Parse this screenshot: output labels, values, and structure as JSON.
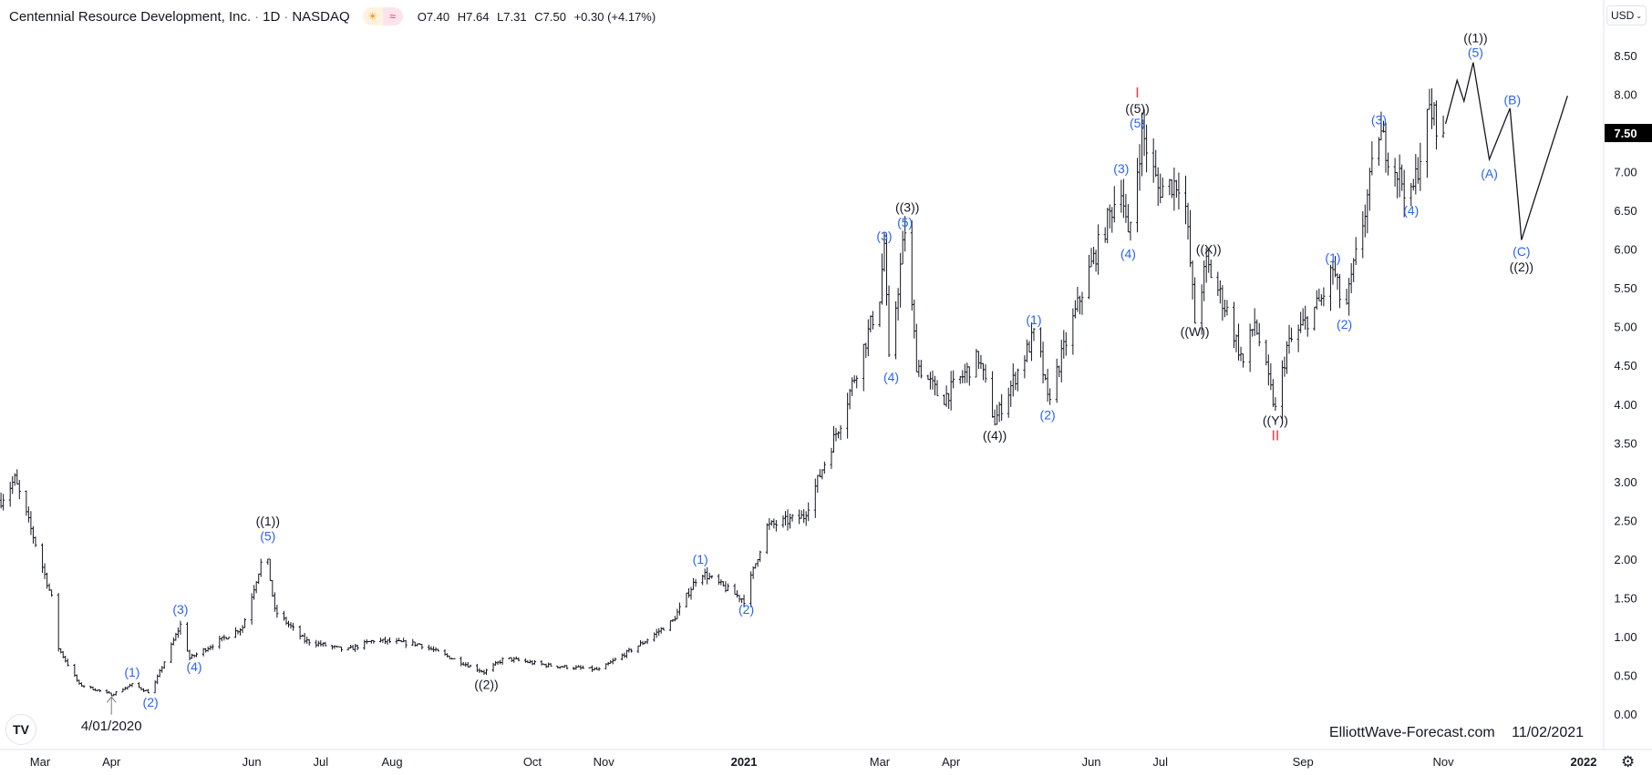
{
  "header": {
    "title": "Centennial Resource Development, Inc.",
    "interval": "1D",
    "exchange": "NASDAQ",
    "sep": "·",
    "sun_icon": "☀",
    "wave_icon": "≈",
    "open": "O7.40",
    "high": "H7.64",
    "low": "L7.31",
    "close": "C7.50",
    "change": "+0.30 (+4.17%)"
  },
  "currency_button": {
    "label": "USD",
    "chevron": "⌄"
  },
  "watermark": {
    "site": "ElliottWave-Forecast.com",
    "date": "11/02/2021"
  },
  "logo_text": "TV",
  "settings_icon": "⚙",
  "colors": {
    "bar": "#131722",
    "wave_minor": "#2962ff",
    "wave_major": "#131722",
    "wave_cycle": "#f23645",
    "axis_text": "#131722",
    "last_price_bg": "#000000"
  },
  "chart_data": {
    "type": "ohlc-bar",
    "title": "Centennial Resource Development, Inc. · 1D · NASDAQ",
    "ylim": [
      -0.25,
      9.1
    ],
    "xlim": [
      "2020-03-01",
      "2022-01-01"
    ],
    "y_ticks": [
      "0.00",
      "0.50",
      "1.00",
      "1.50",
      "2.00",
      "2.50",
      "3.00",
      "3.50",
      "4.00",
      "4.50",
      "5.00",
      "5.50",
      "6.00",
      "6.50",
      "7.00",
      "7.50",
      "8.00",
      "8.50"
    ],
    "last_price": {
      "value": 7.5,
      "label": "7.50"
    },
    "x_ticks": [
      {
        "label": "Mar",
        "date": "2020-03-01"
      },
      {
        "label": "Apr",
        "date": "2020-04-01"
      },
      {
        "label": "Jun",
        "date": "2020-06-01"
      },
      {
        "label": "Jul",
        "date": "2020-07-01"
      },
      {
        "label": "Aug",
        "date": "2020-08-01"
      },
      {
        "label": "Oct",
        "date": "2020-10-01"
      },
      {
        "label": "Nov",
        "date": "2020-11-01"
      },
      {
        "label": "2021",
        "date": "2021-01-01"
      },
      {
        "label": "Mar",
        "date": "2021-03-01"
      },
      {
        "label": "Apr",
        "date": "2021-04-01"
      },
      {
        "label": "Jun",
        "date": "2021-06-01"
      },
      {
        "label": "Jul",
        "date": "2021-07-01"
      },
      {
        "label": "Sep",
        "date": "2021-09-01"
      },
      {
        "label": "Nov",
        "date": "2021-11-01"
      },
      {
        "label": "2022",
        "date": "2022-01-01"
      }
    ],
    "price_path": [
      [
        "2020-02-13",
        2.76
      ],
      [
        "2020-02-19",
        3.03
      ],
      [
        "2020-02-28",
        2.2
      ],
      [
        "2020-03-06",
        1.5
      ],
      [
        "2020-03-09",
        0.85
      ],
      [
        "2020-03-18",
        0.38
      ],
      [
        "2020-04-01",
        0.25
      ],
      [
        "2020-04-10",
        0.38
      ],
      [
        "2020-04-18",
        0.27
      ],
      [
        "2020-05-01",
        1.15
      ],
      [
        "2020-05-05",
        0.72
      ],
      [
        "2020-05-28",
        1.12
      ],
      [
        "2020-06-07",
        2.15
      ],
      [
        "2020-06-11",
        1.33
      ],
      [
        "2020-06-24",
        0.95
      ],
      [
        "2020-07-12",
        0.82
      ],
      [
        "2020-07-24",
        0.95
      ],
      [
        "2020-08-13",
        0.9
      ],
      [
        "2020-09-10",
        0.54
      ],
      [
        "2020-09-19",
        0.72
      ],
      [
        "2020-10-07",
        0.63
      ],
      [
        "2020-10-30",
        0.57
      ],
      [
        "2020-11-18",
        0.92
      ],
      [
        "2020-12-01",
        1.2
      ],
      [
        "2020-12-13",
        1.84
      ],
      [
        "2020-12-20",
        1.7
      ],
      [
        "2021-01-01",
        1.47
      ],
      [
        "2021-01-11",
        2.42
      ],
      [
        "2021-01-27",
        2.55
      ],
      [
        "2021-02-12",
        3.78
      ],
      [
        "2021-03-01",
        5.4
      ],
      [
        "2021-03-03",
        6.07
      ],
      [
        "2021-03-05",
        4.53
      ],
      [
        "2021-03-12",
        6.26
      ],
      [
        "2021-03-17",
        4.53
      ],
      [
        "2021-03-28",
        4.05
      ],
      [
        "2021-04-13",
        4.6
      ],
      [
        "2021-04-20",
        3.78
      ],
      [
        "2021-05-08",
        4.95
      ],
      [
        "2021-05-13",
        4.05
      ],
      [
        "2021-05-29",
        5.55
      ],
      [
        "2021-06-14",
        6.85
      ],
      [
        "2021-06-17",
        6.1
      ],
      [
        "2021-06-23",
        7.52
      ],
      [
        "2021-06-30",
        6.78
      ],
      [
        "2021-07-11",
        6.9
      ],
      [
        "2021-07-14",
        5.82
      ],
      [
        "2021-07-16",
        5.07
      ],
      [
        "2021-07-21",
        5.82
      ],
      [
        "2021-07-30",
        5.2
      ],
      [
        "2021-08-06",
        4.53
      ],
      [
        "2021-08-11",
        5.07
      ],
      [
        "2021-08-20",
        3.92
      ],
      [
        "2021-08-25",
        4.73
      ],
      [
        "2021-09-09",
        5.35
      ],
      [
        "2021-09-14",
        5.75
      ],
      [
        "2021-09-19",
        5.14
      ],
      [
        "2021-09-28",
        6.5
      ],
      [
        "2021-10-04",
        7.52
      ],
      [
        "2021-10-09",
        7.18
      ],
      [
        "2021-10-18",
        6.64
      ],
      [
        "2021-10-26",
        7.8
      ],
      [
        "2021-11-01",
        7.5
      ]
    ],
    "projection": [
      [
        "2021-11-02",
        7.62
      ],
      [
        "2021-11-07",
        8.18
      ],
      [
        "2021-11-10",
        7.91
      ],
      [
        "2021-11-14",
        8.41
      ],
      [
        "2021-11-21",
        7.16
      ],
      [
        "2021-11-30",
        7.82
      ],
      [
        "2021-12-05",
        6.12
      ],
      [
        "2021-12-25",
        7.98
      ]
    ],
    "wave_labels": [
      {
        "text": "(1)",
        "date": "2020-04-10",
        "price": 0.54,
        "degree": "minor"
      },
      {
        "text": "(2)",
        "date": "2020-04-18",
        "price": 0.15,
        "degree": "minor"
      },
      {
        "text": "(3)",
        "date": "2020-05-01",
        "price": 1.35,
        "degree": "minor"
      },
      {
        "text": "(4)",
        "date": "2020-05-07",
        "price": 0.61,
        "degree": "minor"
      },
      {
        "text": "(5)",
        "date": "2020-06-08",
        "price": 2.3,
        "degree": "minor"
      },
      {
        "text": "((1))",
        "date": "2020-06-08",
        "price": 2.49,
        "degree": "major"
      },
      {
        "text": "((2))",
        "date": "2020-09-11",
        "price": 0.38,
        "degree": "major"
      },
      {
        "text": "(1)",
        "date": "2020-12-13",
        "price": 2.0,
        "degree": "minor"
      },
      {
        "text": "(2)",
        "date": "2021-01-02",
        "price": 1.35,
        "degree": "minor"
      },
      {
        "text": "(3)",
        "date": "2021-03-03",
        "price": 6.17,
        "degree": "minor"
      },
      {
        "text": "(4)",
        "date": "2021-03-06",
        "price": 4.35,
        "degree": "minor"
      },
      {
        "text": "(5)",
        "date": "2021-03-12",
        "price": 6.35,
        "degree": "minor"
      },
      {
        "text": "((3))",
        "date": "2021-03-13",
        "price": 6.54,
        "degree": "major"
      },
      {
        "text": "((4))",
        "date": "2021-04-20",
        "price": 3.6,
        "degree": "major"
      },
      {
        "text": "(1)",
        "date": "2021-05-07",
        "price": 5.09,
        "degree": "minor"
      },
      {
        "text": "(2)",
        "date": "2021-05-13",
        "price": 3.86,
        "degree": "minor"
      },
      {
        "text": "(3)",
        "date": "2021-06-14",
        "price": 7.04,
        "degree": "minor"
      },
      {
        "text": "(4)",
        "date": "2021-06-17",
        "price": 5.94,
        "degree": "minor"
      },
      {
        "text": "(5)",
        "date": "2021-06-21",
        "price": 7.63,
        "degree": "minor"
      },
      {
        "text": "((5))",
        "date": "2021-06-21",
        "price": 7.82,
        "degree": "major"
      },
      {
        "text": "I",
        "date": "2021-06-21",
        "price": 8.02,
        "degree": "cycle"
      },
      {
        "text": "((X))",
        "date": "2021-07-22",
        "price": 6.0,
        "degree": "major"
      },
      {
        "text": "((W))",
        "date": "2021-07-16",
        "price": 4.94,
        "degree": "major"
      },
      {
        "text": "((Y))",
        "date": "2021-08-20",
        "price": 3.79,
        "degree": "major"
      },
      {
        "text": "II",
        "date": "2021-08-20",
        "price": 3.59,
        "degree": "cycle"
      },
      {
        "text": "(1)",
        "date": "2021-09-14",
        "price": 5.89,
        "degree": "minor"
      },
      {
        "text": "(2)",
        "date": "2021-09-19",
        "price": 5.03,
        "degree": "minor"
      },
      {
        "text": "(3)",
        "date": "2021-10-04",
        "price": 7.67,
        "degree": "minor"
      },
      {
        "text": "(4)",
        "date": "2021-10-18",
        "price": 6.5,
        "degree": "minor"
      },
      {
        "text": "(5)",
        "date": "2021-11-15",
        "price": 8.54,
        "degree": "minor"
      },
      {
        "text": "((1))",
        "date": "2021-11-15",
        "price": 8.73,
        "degree": "major"
      },
      {
        "text": "(A)",
        "date": "2021-11-21",
        "price": 6.98,
        "degree": "minor"
      },
      {
        "text": "(B)",
        "date": "2021-12-01",
        "price": 7.93,
        "degree": "minor"
      },
      {
        "text": "(C)",
        "date": "2021-12-05",
        "price": 5.97,
        "degree": "minor"
      },
      {
        "text": "((2))",
        "date": "2021-12-05",
        "price": 5.77,
        "degree": "major"
      }
    ],
    "annotation": {
      "text": "4/01/2020",
      "date": "2020-04-01",
      "price": -0.15,
      "arrow_to_price": 0.22
    }
  }
}
